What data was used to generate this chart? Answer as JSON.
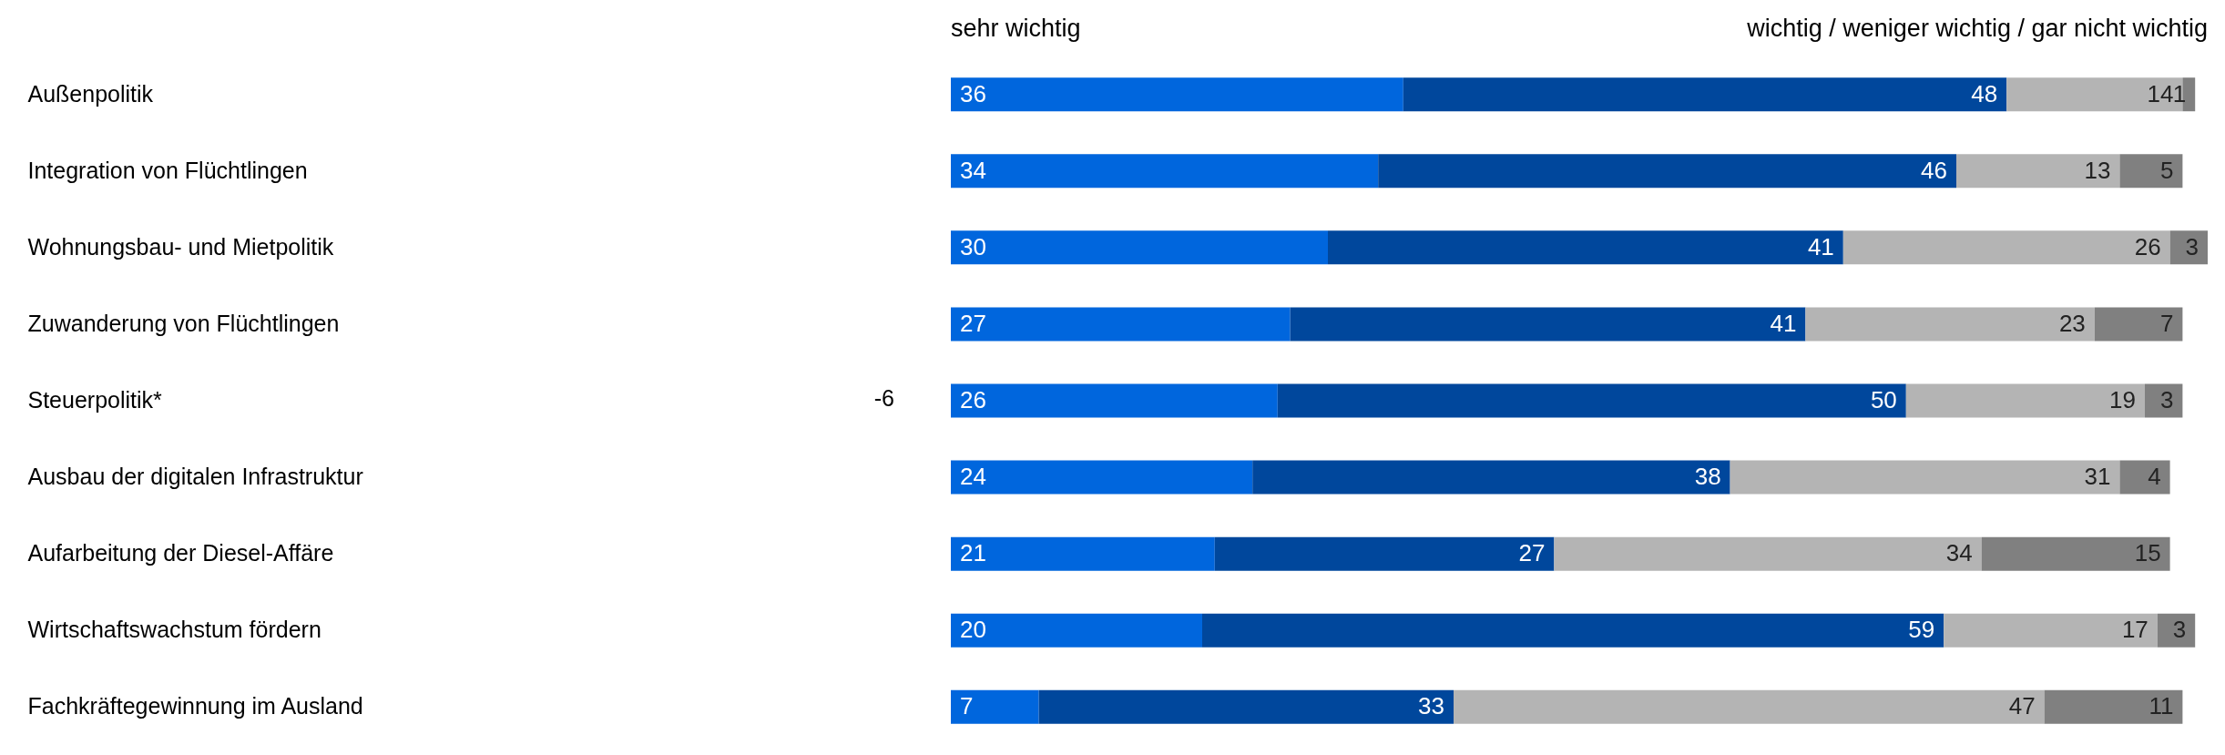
{
  "chart_data": {
    "type": "bar",
    "orientation": "horizontal",
    "stacked": true,
    "data_labels": true,
    "tick_labels": "y",
    "categories": [
      "Außenpolitik",
      "Integration von Flüchtlingen",
      "Wohnungsbau- und Mietpolitik",
      "Zuwanderung von Flüchtlingen",
      "Steuerpolitik*",
      "Ausbau der digitalen Infrastruktur",
      "Aufarbeitung der Diesel-Affäre",
      "Wirtschaftswachstum fördern",
      "Fachkräftegewinnung im Ausland"
    ],
    "xlim": [
      0,
      100
    ],
    "series": [
      {
        "color": "#0066dd",
        "values": [
          36,
          34,
          30,
          27,
          26,
          24,
          21,
          20,
          7
        ]
      },
      {
        "color": "#00479c",
        "values": [
          48,
          46,
          41,
          41,
          50,
          38,
          27,
          59,
          33
        ]
      },
      {
        "color": "#b4b4b4",
        "values": [
          14,
          13,
          26,
          23,
          19,
          31,
          34,
          17,
          47
        ]
      },
      {
        "color": "#808080",
        "values": [
          1,
          5,
          3,
          7,
          3,
          4,
          15,
          3,
          11
        ]
      }
    ],
    "annotations": [
      "sehr wichtig",
      "wichtig / weniger wichtig / gar nicht wichtig",
      "-6"
    ]
  }
}
